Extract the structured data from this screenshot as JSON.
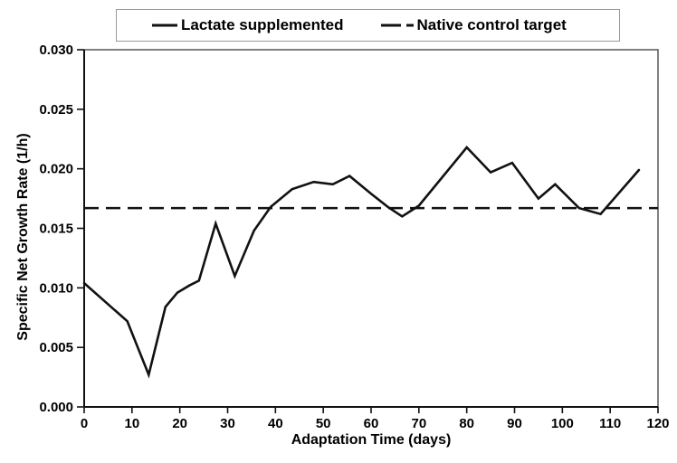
{
  "figure": {
    "legend": {
      "items": [
        {
          "label": "Lactate supplemented",
          "marker": "solid-line"
        },
        {
          "label": "Native control target",
          "marker": "dashed-line"
        }
      ]
    }
  },
  "chart_data": {
    "type": "line",
    "title": "",
    "xlabel": "Adaptation Time (days)",
    "ylabel": "Specific Net Growth Rate (1/h)",
    "xlim": [
      0,
      120
    ],
    "ylim": [
      0,
      0.03
    ],
    "x_ticks": [
      0,
      10,
      20,
      30,
      40,
      50,
      60,
      70,
      80,
      90,
      100,
      110,
      120
    ],
    "y_ticks": [
      0.0,
      0.005,
      0.01,
      0.015,
      0.02,
      0.025,
      0.03
    ],
    "y_tick_decimals": 3,
    "grid": false,
    "legend_position": "top-center-boxed",
    "ink_color": "#111111",
    "frame_color": "#4a4a4a",
    "series": [
      {
        "name": "Lactate supplemented",
        "style": "solid",
        "color": "#111111",
        "x": [
          0,
          9,
          13.5,
          17,
          19.5,
          22,
          24,
          27.5,
          31.5,
          35.5,
          39,
          43.5,
          48,
          52,
          55.5,
          60,
          63.5,
          66.5,
          70,
          80,
          85,
          89.5,
          95,
          98.5,
          103.5,
          108,
          116
        ],
        "y": [
          0.0104,
          0.0072,
          0.0027,
          0.0084,
          0.0096,
          0.0102,
          0.0106,
          0.0154,
          0.011,
          0.0148,
          0.0168,
          0.0183,
          0.0189,
          0.0187,
          0.0194,
          0.0179,
          0.0168,
          0.016,
          0.0169,
          0.0218,
          0.0197,
          0.0205,
          0.0175,
          0.0187,
          0.0167,
          0.0162,
          0.0199
        ]
      },
      {
        "name": "Native control target",
        "style": "dashed",
        "color": "#111111",
        "constant_value": 0.0167
      }
    ]
  }
}
